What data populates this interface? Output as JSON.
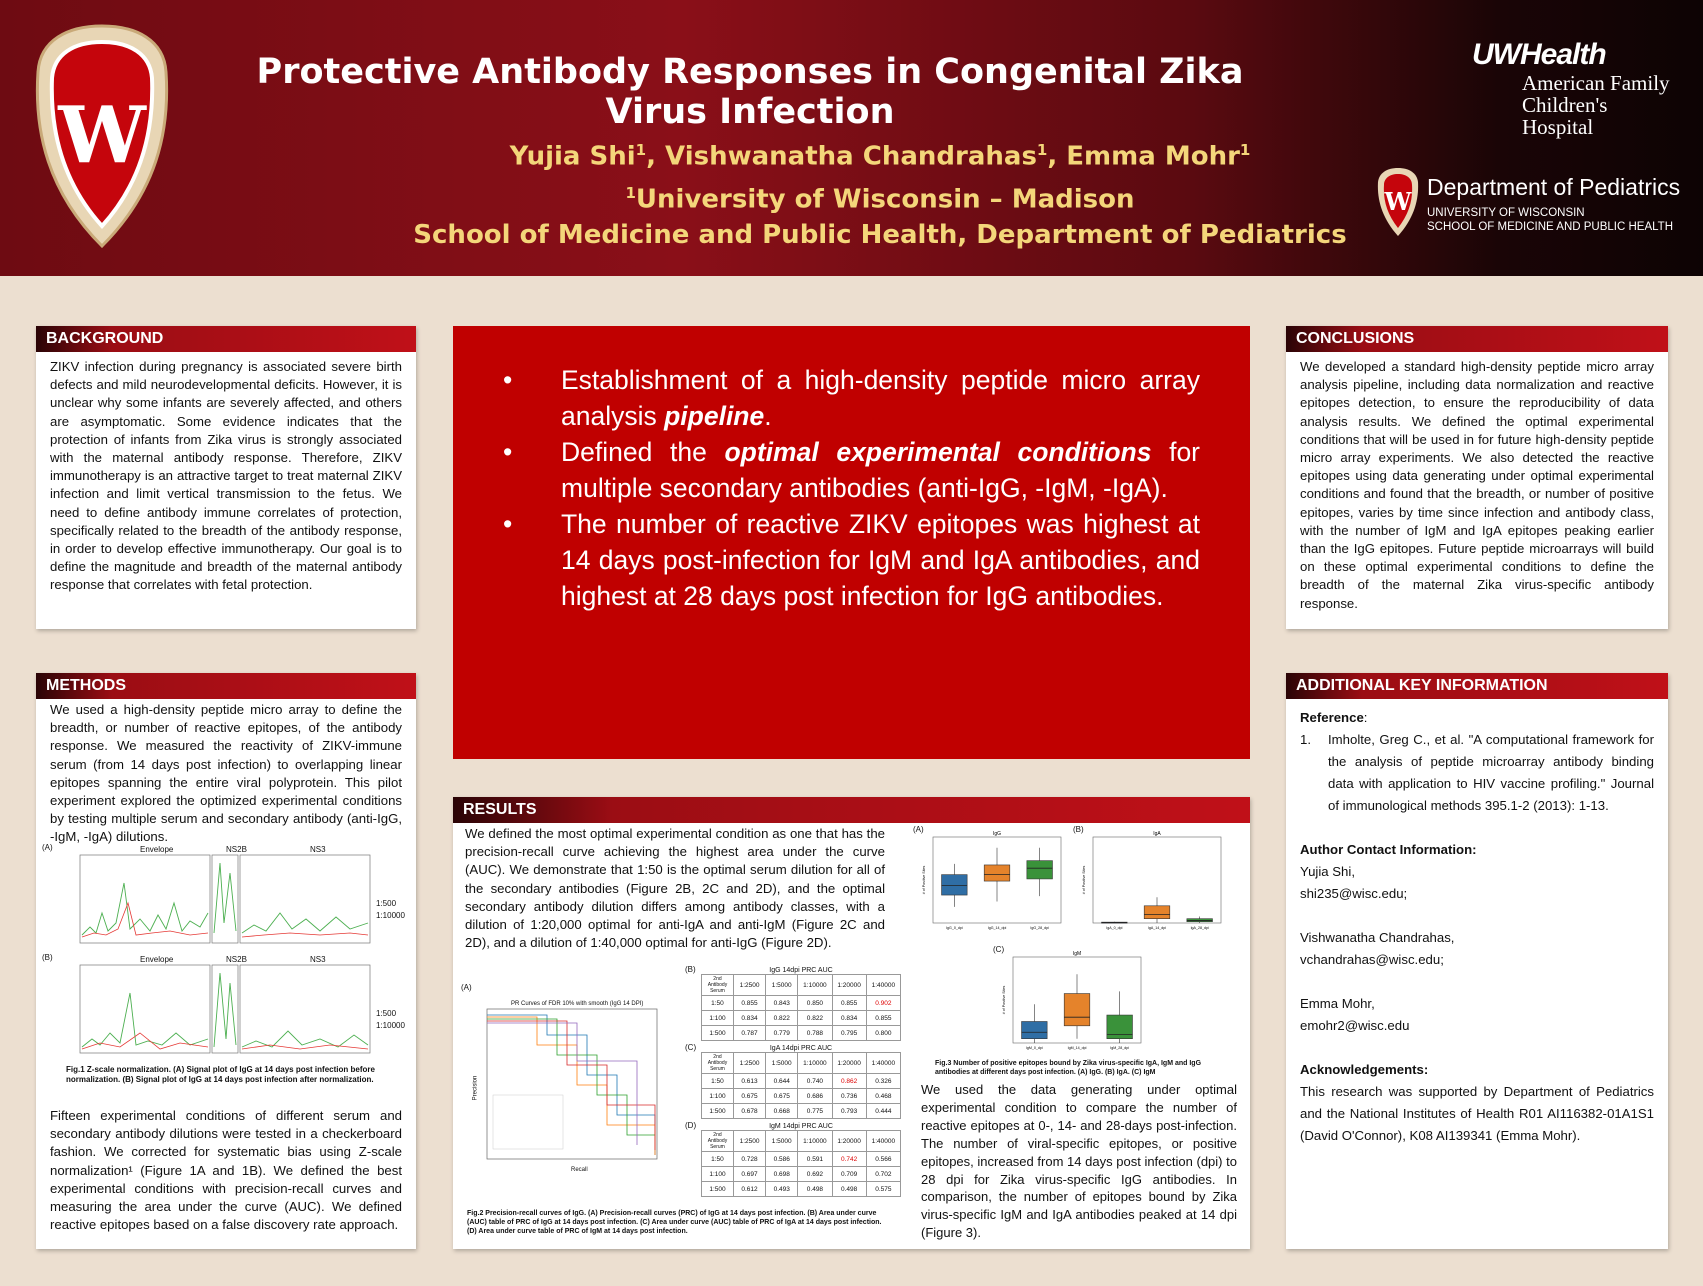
{
  "header": {
    "title": "Protective Antibody Responses in Congenital Zika Virus Infection",
    "authors": [
      "Yujia Shi",
      "Vishwanatha Chandrahas",
      "Emma Mohr"
    ],
    "affil_sup": "1",
    "affiliation_line1": "University of Wisconsin – Madison",
    "affiliation_line2": "School of Medicine and Public Health, Department of Pediatrics",
    "logo_uwhealth": "UWHealth",
    "logo_hospital1": "American Family",
    "logo_hospital2": "Children's Hospital",
    "logo_dept": "Department of Pediatrics",
    "logo_uw1": "UNIVERSITY OF WISCONSIN",
    "logo_uw2": "SCHOOL OF MEDICINE AND PUBLIC HEALTH",
    "crest_letter": "W"
  },
  "background": {
    "heading": "BACKGROUND",
    "text": "ZIKV infection during pregnancy is associated severe birth defects and mild neurodevelopmental deficits. However, it is unclear why some infants are severely affected, and others are asymptomatic. Some evidence indicates that the protection of infants from Zika virus is strongly associated with the maternal antibody response. Therefore, ZIKV immunotherapy is an attractive target to treat maternal ZIKV infection and limit vertical transmission to the fetus. We need to define antibody immune correlates of protection, specifically related to the breadth of the antibody response, in order to develop effective immunotherapy. Our goal is to define the magnitude and breadth of the maternal antibody response that correlates with fetal protection."
  },
  "methods": {
    "heading": "METHODS",
    "text1": "We used a high-density peptide micro array to define the breadth, or number of reactive epitopes, of the antibody response. We measured the reactivity of ZIKV-immune serum (from 14 days post infection) to overlapping linear epitopes spanning the entire viral polyprotein. This pilot experiment explored the optimized experimental conditions by testing multiple serum and secondary antibody (anti-IgG, -IgM, -IgA) dilutions.",
    "fig1_panel_a": "(A)",
    "fig1_panel_b": "(B)",
    "fig1_titles": [
      "Envelope",
      "NS2B",
      "NS3"
    ],
    "fig1_side1": "1:500",
    "fig1_side2": "1:10000",
    "fig1_caption": "Fig.1 Z-scale normalization. (A) Signal plot of IgG at 14 days post infection before normalization. (B) Signal plot of IgG at 14 days post infection after normalization.",
    "text2": "Fifteen experimental conditions of different serum and secondary antibody dilutions were tested in a checkerboard fashion. We corrected for systematic bias using Z-scale normalization¹ (Figure 1A and 1B). We defined the best experimental conditions with precision-recall curves and measuring the area under the curve (AUC). We defined reactive epitopes based on a false discovery rate approach."
  },
  "highlight": {
    "b1_pre": "Establishment of a high-density peptide micro array analysis ",
    "b1_em": "pipeline",
    "b1_post": ".",
    "b2_pre": "Defined the ",
    "b2_em": "optimal experimental conditions",
    "b2_post": " for  multiple secondary antibodies (anti-IgG, -IgM, -IgA).",
    "b3": "The number of reactive ZIKV epitopes was highest at 14 days post-infection for IgM and IgA antibodies, and highest at 28 days post infection for IgG antibodies."
  },
  "results": {
    "heading": "RESULTS",
    "text1": "We defined the most optimal experimental condition as one that has the precision-recall curve achieving the highest area under the curve (AUC). We demonstrate that 1:50 is the optimal serum dilution for all of the secondary antibodies (Figure 2B, 2C and 2D), and the optimal secondary antibody dilution differs among antibody classes, with a dilution of 1:20,000 optimal for anti-IgA and anti-IgM (Figure 2C and 2D), and a dilution of 1:40,000 optimal for anti-IgG (Figure 2D).",
    "fig2_a": "(A)",
    "fig2_b": "(B)",
    "fig2_c": "(C)",
    "fig2_d": "(D)",
    "pr_title": "PR Curves of FDR 10% with smooth (IgG 14 DPI)",
    "pr_xlabel": "Recall",
    "pr_ylabel": "Precision",
    "tables": [
      {
        "title": "IgG 14dpi PRC AUC",
        "cols": [
          "1:2500",
          "1:5000",
          "1:10000",
          "1:20000",
          "1:40000"
        ],
        "rows": [
          [
            "1:50",
            "0.855",
            "0.843",
            "0.850",
            "0.855",
            "0.902"
          ],
          [
            "1:100",
            "0.834",
            "0.822",
            "0.822",
            "0.834",
            "0.855"
          ],
          [
            "1:500",
            "0.787",
            "0.779",
            "0.788",
            "0.795",
            "0.800"
          ]
        ],
        "hi": [
          0,
          5
        ]
      },
      {
        "title": "IgA 14dpi PRC AUC",
        "cols": [
          "1:2500",
          "1:5000",
          "1:10000",
          "1:20000",
          "1:40000"
        ],
        "rows": [
          [
            "1:50",
            "0.613",
            "0.644",
            "0.740",
            "0.862",
            "0.326"
          ],
          [
            "1:100",
            "0.675",
            "0.675",
            "0.686",
            "0.736",
            "0.468"
          ],
          [
            "1:500",
            "0.678",
            "0.668",
            "0.775",
            "0.793",
            "0.444"
          ]
        ],
        "hi": [
          0,
          4
        ]
      },
      {
        "title": "IgM 14dpi PRC AUC",
        "cols": [
          "1:2500",
          "1:5000",
          "1:10000",
          "1:20000",
          "1:40000"
        ],
        "rows": [
          [
            "1:50",
            "0.728",
            "0.586",
            "0.591",
            "0.742",
            "0.566"
          ],
          [
            "1:100",
            "0.697",
            "0.698",
            "0.692",
            "0.709",
            "0.702"
          ],
          [
            "1:500",
            "0.612",
            "0.493",
            "0.498",
            "0.498",
            "0.575"
          ]
        ],
        "hi": [
          0,
          4
        ]
      }
    ],
    "table_corner_top": "2nd Antibody",
    "table_corner_bottom": "Serum",
    "fig2_caption": "Fig.2 Precision-recall curves of IgG. (A) Precision-recall curves (PRC) of IgG at 14 days post infection. (B) Area under curve (AUC) table of PRC of IgG at 14 days post infection. (C) Area under curve (AUC) table of PRC of IgA at 14 days post infection. (D) Area under curve table of PRC of IgM at 14 days post infection.",
    "fig3_a": "(A)",
    "fig3_b": "(B)",
    "fig3_c": "(C)",
    "fig3_titles": [
      "IgG",
      "IgA",
      "IgM"
    ],
    "fig3_ylabel": "# of Positive Sites",
    "fig3_cats_g": [
      "IgG_0_dpi",
      "IgG_14_dpi",
      "IgG_28_dpi"
    ],
    "fig3_cats_a": [
      "IgA_0_dpi",
      "IgA_14_dpi",
      "IgA_28_dpi"
    ],
    "fig3_cats_m": [
      "IgM_0_dpi",
      "IgM_14_dpi",
      "IgM_28_dpi"
    ],
    "fig3_caption": "Fig.3 Number of positive epitopes bound by Zika virus-specific IgA, IgM and IgG antibodies at different days post infection. (A) IgG. (B) IgA. (C) IgM",
    "text2": "We used the data generating under optimal experimental condition to compare the number of reactive epitopes at 0-, 14- and 28-days post-infection. The number of viral-specific epitopes, or positive epitopes, increased from 14 days post infection (dpi) to 28 dpi for Zika virus-specific IgG antibodies. In comparison, the number of epitopes bound by Zika virus-specific IgM and IgA antibodies peaked at 14 dpi (Figure 3)."
  },
  "conclusions": {
    "heading": "CONCLUSIONS",
    "text": "We developed a standard high-density peptide micro array analysis pipeline, including data normalization and reactive epitopes detection, to ensure the reproducibility of data analysis results. We defined the optimal experimental conditions that will be used in for future high-density peptide micro array experiments. We also detected the reactive epitopes using data generating under optimal experimental conditions and found that the breadth, or number of positive epitopes, varies by time since infection and antibody class, with the number of IgM and IgA epitopes peaking earlier than the IgG epitopes. Future peptide microarrays will build on these optimal experimental conditions to define the breadth of the maternal Zika virus-specific antibody response."
  },
  "additional": {
    "heading": "ADDITIONAL KEY INFORMATION",
    "ref_label": "Reference",
    "ref_num": "1.",
    "ref_text": "Imholte, Greg C., et al. \"A computational framework for the analysis of peptide microarray antibody binding data with application to HIV vaccine profiling.\" Journal of immunological methods 395.1-2 (2013): 1-13.",
    "contact_label": "Author Contact Information:",
    "contacts": [
      [
        "Yujia Shi,",
        "shi235@wisc.edu;"
      ],
      [
        "Vishwanatha Chandrahas,",
        "vchandrahas@wisc.edu;"
      ],
      [
        "Emma Mohr,",
        "emohr2@wisc.edu"
      ]
    ],
    "ack_label": "Acknowledgements:",
    "ack_text": "This research was supported by Department of Pediatrics and the National Institutes of Health R01 AI116382-01A1S1 (David O'Connor), K08 AI139341 (Emma Mohr)."
  },
  "chart_data": [
    {
      "type": "box",
      "title": "IgG",
      "categories": [
        "IgG_0_dpi",
        "IgG_14_dpi",
        "IgG_28_dpi"
      ],
      "ylabel": "# of Positive Sites",
      "ylim": [
        0,
        800
      ],
      "boxes": [
        [
          150,
          260,
          350,
          450,
          550
        ],
        [
          200,
          390,
          450,
          540,
          700
        ],
        [
          250,
          410,
          510,
          580,
          700
        ]
      ],
      "colors": [
        "#2f6ea5",
        "#e5832b",
        "#3a923a"
      ]
    },
    {
      "type": "box",
      "title": "IgA",
      "categories": [
        "IgA_0_dpi",
        "IgA_14_dpi",
        "IgA_28_dpi"
      ],
      "ylabel": "# of Positive Sites",
      "ylim": [
        0,
        200
      ],
      "boxes": [
        [
          0,
          0,
          1,
          2,
          3
        ],
        [
          0,
          10,
          20,
          40,
          60
        ],
        [
          0,
          3,
          6,
          10,
          15
        ]
      ],
      "colors": [
        "#2f6ea5",
        "#e5832b",
        "#3a923a"
      ]
    },
    {
      "type": "box",
      "title": "IgM",
      "categories": [
        "IgM_0_dpi",
        "IgM_14_dpi",
        "IgM_28_dpi"
      ],
      "ylabel": "# of Positive Sites",
      "ylim": [
        0,
        40
      ],
      "boxes": [
        [
          0,
          2,
          5,
          10,
          18
        ],
        [
          2,
          8,
          12,
          23,
          32
        ],
        [
          0,
          2,
          4,
          13,
          24
        ]
      ],
      "colors": [
        "#2f6ea5",
        "#e5832b",
        "#3a923a"
      ]
    }
  ]
}
